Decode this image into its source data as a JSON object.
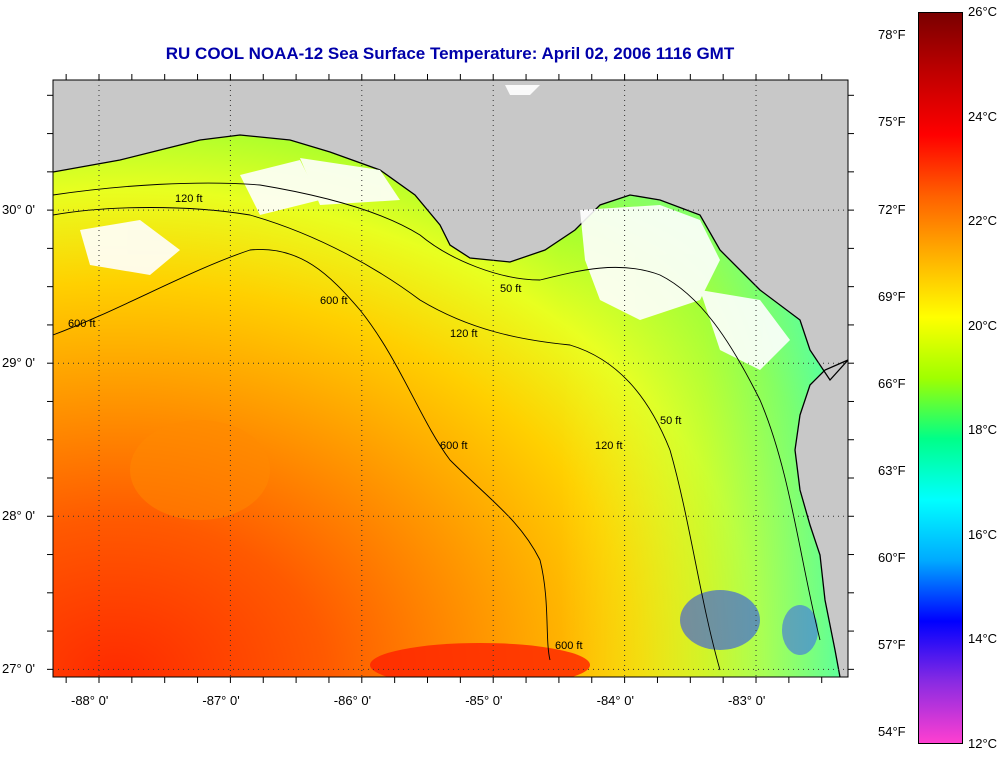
{
  "title": "RU COOL  NOAA-12  Sea Surface Temperature:  April 02, 2006 1116 GMT",
  "map": {
    "lon_range": [
      -88.35,
      -82.3
    ],
    "lat_range": [
      26.95,
      30.85
    ],
    "lon_ticks": [
      {
        "value": -88,
        "label": "-88° 0'"
      },
      {
        "value": -87,
        "label": "-87° 0'"
      },
      {
        "value": -86,
        "label": "-86° 0'"
      },
      {
        "value": -85,
        "label": "-85° 0'"
      },
      {
        "value": -84,
        "label": "-84° 0'"
      },
      {
        "value": -83,
        "label": "-83° 0'"
      }
    ],
    "lat_ticks": [
      {
        "value": 30,
        "label": "30° 0'"
      },
      {
        "value": 29,
        "label": "29° 0'"
      },
      {
        "value": 28,
        "label": "28° 0'"
      },
      {
        "value": 27,
        "label": "27° 0'"
      }
    ],
    "contour_labels": [
      "50 ft",
      "120 ft",
      "600 ft"
    ],
    "land_color": "#c8c8c8",
    "cloud_color": "#ffffff"
  },
  "colorbar": {
    "celsius_labels": [
      "26°C",
      "24°C",
      "22°C",
      "20°C",
      "18°C",
      "16°C",
      "14°C",
      "12°C"
    ],
    "fahrenheit_labels": [
      "78°F",
      "75°F",
      "72°F",
      "69°F",
      "66°F",
      "63°F",
      "60°F",
      "57°F",
      "54°F"
    ],
    "celsius_range": [
      12,
      26
    ],
    "colors": [
      "#ff3fd0",
      "#8a2be2",
      "#0000ff",
      "#00aaff",
      "#00ffff",
      "#00ff88",
      "#a0ff00",
      "#ffff00",
      "#ffb000",
      "#ff6000",
      "#ff0000",
      "#c00000",
      "#7a0000"
    ]
  }
}
